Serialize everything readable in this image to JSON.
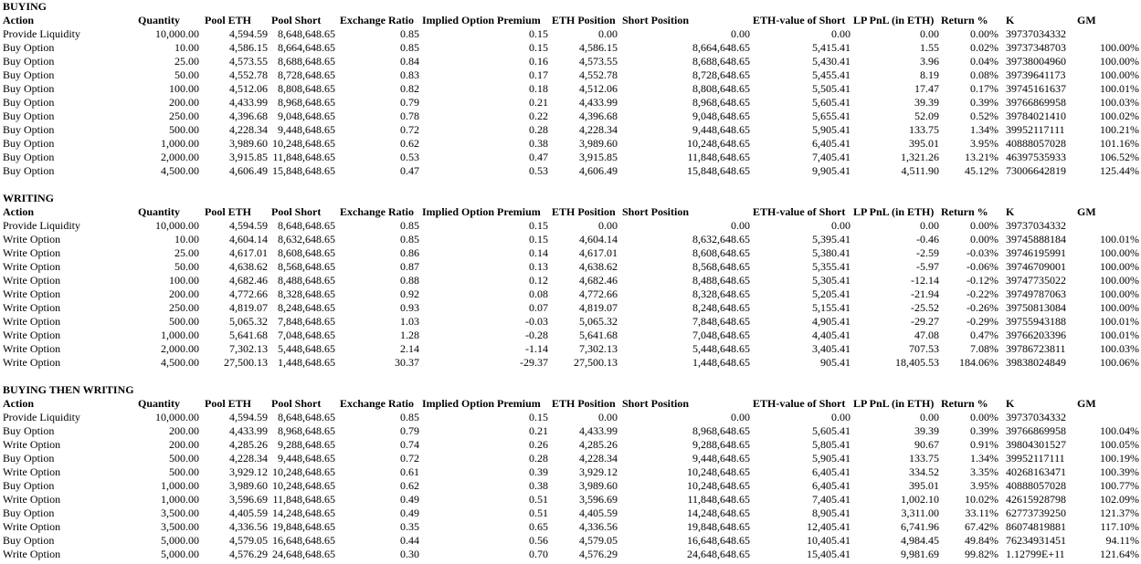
{
  "headers": [
    "Action",
    "Quantity",
    "Pool ETH",
    "Pool Short",
    "Exchange Ratio",
    "Implied Option Premium",
    "ETH Position",
    "Short Position",
    "ETH-value of Short",
    "LP PnL (in ETH)",
    "Return %",
    "K",
    "GM"
  ],
  "sections": [
    {
      "title": "BUYING",
      "rows": [
        [
          "Provide Liquidity",
          "10,000.00",
          "4,594.59",
          "8,648,648.65",
          "0.85",
          "0.15",
          "0.00",
          "0.00",
          "0.00",
          "0.00",
          "0.00%",
          "39737034332",
          ""
        ],
        [
          "Buy Option",
          "10.00",
          "4,586.15",
          "8,664,648.65",
          "0.85",
          "0.15",
          "4,586.15",
          "8,664,648.65",
          "5,415.41",
          "1.55",
          "0.02%",
          "39737348703",
          "100.00%"
        ],
        [
          "Buy Option",
          "25.00",
          "4,573.55",
          "8,688,648.65",
          "0.84",
          "0.16",
          "4,573.55",
          "8,688,648.65",
          "5,430.41",
          "3.96",
          "0.04%",
          "39738004960",
          "100.00%"
        ],
        [
          "Buy Option",
          "50.00",
          "4,552.78",
          "8,728,648.65",
          "0.83",
          "0.17",
          "4,552.78",
          "8,728,648.65",
          "5,455.41",
          "8.19",
          "0.08%",
          "39739641173",
          "100.00%"
        ],
        [
          "Buy Option",
          "100.00",
          "4,512.06",
          "8,808,648.65",
          "0.82",
          "0.18",
          "4,512.06",
          "8,808,648.65",
          "5,505.41",
          "17.47",
          "0.17%",
          "39745161637",
          "100.01%"
        ],
        [
          "Buy Option",
          "200.00",
          "4,433.99",
          "8,968,648.65",
          "0.79",
          "0.21",
          "4,433.99",
          "8,968,648.65",
          "5,605.41",
          "39.39",
          "0.39%",
          "39766869958",
          "100.03%"
        ],
        [
          "Buy Option",
          "250.00",
          "4,396.68",
          "9,048,648.65",
          "0.78",
          "0.22",
          "4,396.68",
          "9,048,648.65",
          "5,655.41",
          "52.09",
          "0.52%",
          "39784021410",
          "100.02%"
        ],
        [
          "Buy Option",
          "500.00",
          "4,228.34",
          "9,448,648.65",
          "0.72",
          "0.28",
          "4,228.34",
          "9,448,648.65",
          "5,905.41",
          "133.75",
          "1.34%",
          "39952117111",
          "100.21%"
        ],
        [
          "Buy Option",
          "1,000.00",
          "3,989.60",
          "10,248,648.65",
          "0.62",
          "0.38",
          "3,989.60",
          "10,248,648.65",
          "6,405.41",
          "395.01",
          "3.95%",
          "40888057028",
          "101.16%"
        ],
        [
          "Buy Option",
          "2,000.00",
          "3,915.85",
          "11,848,648.65",
          "0.53",
          "0.47",
          "3,915.85",
          "11,848,648.65",
          "7,405.41",
          "1,321.26",
          "13.21%",
          "46397535933",
          "106.52%"
        ],
        [
          "Buy Option",
          "4,500.00",
          "4,606.49",
          "15,848,648.65",
          "0.47",
          "0.53",
          "4,606.49",
          "15,848,648.65",
          "9,905.41",
          "4,511.90",
          "45.12%",
          "73006642819",
          "125.44%"
        ]
      ]
    },
    {
      "title": "WRITING",
      "rows": [
        [
          "Provide Liquidity",
          "10,000.00",
          "4,594.59",
          "8,648,648.65",
          "0.85",
          "0.15",
          "0.00",
          "0.00",
          "0.00",
          "0.00",
          "0.00%",
          "39737034332",
          ""
        ],
        [
          "Write Option",
          "10.00",
          "4,604.14",
          "8,632,648.65",
          "0.85",
          "0.15",
          "4,604.14",
          "8,632,648.65",
          "5,395.41",
          "-0.46",
          "0.00%",
          "39745888184",
          "100.01%"
        ],
        [
          "Write Option",
          "25.00",
          "4,617.01",
          "8,608,648.65",
          "0.86",
          "0.14",
          "4,617.01",
          "8,608,648.65",
          "5,380.41",
          "-2.59",
          "-0.03%",
          "39746195991",
          "100.00%"
        ],
        [
          "Write Option",
          "50.00",
          "4,638.62",
          "8,568,648.65",
          "0.87",
          "0.13",
          "4,638.62",
          "8,568,648.65",
          "5,355.41",
          "-5.97",
          "-0.06%",
          "39746709001",
          "100.00%"
        ],
        [
          "Write Option",
          "100.00",
          "4,682.46",
          "8,488,648.65",
          "0.88",
          "0.12",
          "4,682.46",
          "8,488,648.65",
          "5,305.41",
          "-12.14",
          "-0.12%",
          "39747735022",
          "100.00%"
        ],
        [
          "Write Option",
          "200.00",
          "4,772.66",
          "8,328,648.65",
          "0.92",
          "0.08",
          "4,772.66",
          "8,328,648.65",
          "5,205.41",
          "-21.94",
          "-0.22%",
          "39749787063",
          "100.00%"
        ],
        [
          "Write Option",
          "250.00",
          "4,819.07",
          "8,248,648.65",
          "0.93",
          "0.07",
          "4,819.07",
          "8,248,648.65",
          "5,155.41",
          "-25.52",
          "-0.26%",
          "39750813084",
          "100.00%"
        ],
        [
          "Write Option",
          "500.00",
          "5,065.32",
          "7,848,648.65",
          "1.03",
          "-0.03",
          "5,065.32",
          "7,848,648.65",
          "4,905.41",
          "-29.27",
          "-0.29%",
          "39755943188",
          "100.01%"
        ],
        [
          "Write Option",
          "1,000.00",
          "5,641.68",
          "7,048,648.65",
          "1.28",
          "-0.28",
          "5,641.68",
          "7,048,648.65",
          "4,405.41",
          "47.08",
          "0.47%",
          "39766203396",
          "100.01%"
        ],
        [
          "Write Option",
          "2,000.00",
          "7,302.13",
          "5,448,648.65",
          "2.14",
          "-1.14",
          "7,302.13",
          "5,448,648.65",
          "3,405.41",
          "707.53",
          "7.08%",
          "39786723811",
          "100.03%"
        ],
        [
          "Write Option",
          "4,500.00",
          "27,500.13",
          "1,448,648.65",
          "30.37",
          "-29.37",
          "27,500.13",
          "1,448,648.65",
          "905.41",
          "18,405.53",
          "184.06%",
          "39838024849",
          "100.06%"
        ]
      ]
    },
    {
      "title": "BUYING THEN WRITING",
      "rows": [
        [
          "Provide Liquidity",
          "10,000.00",
          "4,594.59",
          "8,648,648.65",
          "0.85",
          "0.15",
          "0.00",
          "0.00",
          "0.00",
          "0.00",
          "0.00%",
          "39737034332",
          ""
        ],
        [
          "Buy Option",
          "200.00",
          "4,433.99",
          "8,968,648.65",
          "0.79",
          "0.21",
          "4,433.99",
          "8,968,648.65",
          "5,605.41",
          "39.39",
          "0.39%",
          "39766869958",
          "100.04%"
        ],
        [
          "Write Option",
          "200.00",
          "4,285.26",
          "9,288,648.65",
          "0.74",
          "0.26",
          "4,285.26",
          "9,288,648.65",
          "5,805.41",
          "90.67",
          "0.91%",
          "39804301527",
          "100.05%"
        ],
        [
          "Buy Option",
          "500.00",
          "4,228.34",
          "9,448,648.65",
          "0.72",
          "0.28",
          "4,228.34",
          "9,448,648.65",
          "5,905.41",
          "133.75",
          "1.34%",
          "39952117111",
          "100.19%"
        ],
        [
          "Write Option",
          "500.00",
          "3,929.12",
          "10,248,648.65",
          "0.61",
          "0.39",
          "3,929.12",
          "10,248,648.65",
          "6,405.41",
          "334.52",
          "3.35%",
          "40268163471",
          "100.39%"
        ],
        [
          "Buy Option",
          "1,000.00",
          "3,989.60",
          "10,248,648.65",
          "0.62",
          "0.38",
          "3,989.60",
          "10,248,648.65",
          "6,405.41",
          "395.01",
          "3.95%",
          "40888057028",
          "100.77%"
        ],
        [
          "Write Option",
          "1,000.00",
          "3,596.69",
          "11,848,648.65",
          "0.49",
          "0.51",
          "3,596.69",
          "11,848,648.65",
          "7,405.41",
          "1,002.10",
          "10.02%",
          "42615928798",
          "102.09%"
        ],
        [
          "Buy Option",
          "3,500.00",
          "4,405.59",
          "14,248,648.65",
          "0.49",
          "0.51",
          "4,405.59",
          "14,248,648.65",
          "8,905.41",
          "3,311.00",
          "33.11%",
          "62773739250",
          "121.37%"
        ],
        [
          "Write Option",
          "3,500.00",
          "4,336.56",
          "19,848,648.65",
          "0.35",
          "0.65",
          "4,336.56",
          "19,848,648.65",
          "12,405.41",
          "6,741.96",
          "67.42%",
          "86074819881",
          "117.10%"
        ],
        [
          "Buy Option",
          "5,000.00",
          "4,579.05",
          "16,648,648.65",
          "0.44",
          "0.56",
          "4,579.05",
          "16,648,648.65",
          "10,405.41",
          "4,984.45",
          "49.84%",
          "76234931451",
          "94.11%"
        ],
        [
          "Write Option",
          "5,000.00",
          "4,576.29",
          "24,648,648.65",
          "0.30",
          "0.70",
          "4,576.29",
          "24,648,648.65",
          "15,405.41",
          "9,981.69",
          "99.82%",
          "1.12799E+11",
          "121.64%"
        ]
      ]
    }
  ]
}
